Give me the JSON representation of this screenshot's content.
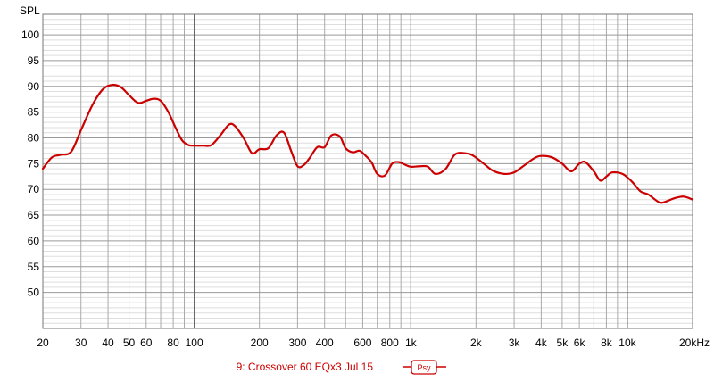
{
  "chart_data": {
    "type": "line",
    "ylabel": "SPL",
    "x_scale": "log",
    "xlim": [
      20,
      20000
    ],
    "ylim": [
      43,
      104
    ],
    "x_ticks": [
      {
        "value": 20,
        "label": "20"
      },
      {
        "value": 30,
        "label": "30"
      },
      {
        "value": 40,
        "label": "40"
      },
      {
        "value": 50,
        "label": "50"
      },
      {
        "value": 60,
        "label": "60"
      },
      {
        "value": 80,
        "label": "80"
      },
      {
        "value": 100,
        "label": "100"
      },
      {
        "value": 200,
        "label": "200"
      },
      {
        "value": 300,
        "label": "300"
      },
      {
        "value": 400,
        "label": "400"
      },
      {
        "value": 600,
        "label": "600"
      },
      {
        "value": 800,
        "label": "800"
      },
      {
        "value": 1000,
        "label": "1k"
      },
      {
        "value": 2000,
        "label": "2k"
      },
      {
        "value": 3000,
        "label": "3k"
      },
      {
        "value": 4000,
        "label": "4k"
      },
      {
        "value": 5000,
        "label": "5k"
      },
      {
        "value": 6000,
        "label": "6k"
      },
      {
        "value": 8000,
        "label": "8k"
      },
      {
        "value": 10000,
        "label": "10k"
      },
      {
        "value": 20000,
        "label": "20kHz"
      }
    ],
    "y_ticks": [
      50,
      55,
      60,
      65,
      70,
      75,
      80,
      85,
      90,
      95,
      100
    ],
    "grid": true,
    "legend_position": "bottom-center",
    "series": [
      {
        "name": "9: Crossover 60 EQx3 Jul 15",
        "color": "#cc0000",
        "x": [
          20,
          22,
          24,
          27,
          30,
          34,
          38,
          42,
          46,
          50,
          55,
          60,
          65,
          70,
          76,
          82,
          88,
          94,
          100,
          110,
          120,
          132,
          145,
          155,
          170,
          185,
          200,
          220,
          240,
          260,
          280,
          300,
          320,
          340,
          370,
          400,
          430,
          470,
          500,
          540,
          580,
          620,
          660,
          700,
          760,
          820,
          880,
          940,
          1000,
          1100,
          1200,
          1300,
          1450,
          1600,
          1800,
          1950,
          2200,
          2400,
          2700,
          3000,
          3300,
          3700,
          4000,
          4500,
          5000,
          5500,
          6000,
          6400,
          7000,
          7500,
          8000,
          8500,
          9500,
          10500,
          11500,
          12500,
          14000,
          15000,
          16500,
          18000,
          19000,
          20000
        ],
        "y": [
          74.0,
          76.2,
          76.7,
          77.3,
          81.5,
          86.5,
          89.5,
          90.3,
          89.8,
          88.3,
          86.8,
          87.2,
          87.6,
          87.2,
          85.0,
          82.0,
          79.5,
          78.6,
          78.5,
          78.5,
          78.6,
          80.5,
          82.6,
          82.2,
          79.8,
          77.0,
          77.8,
          78.0,
          80.5,
          81.0,
          77.5,
          74.5,
          74.7,
          76.0,
          78.2,
          78.2,
          80.5,
          80.3,
          78.0,
          77.2,
          77.5,
          76.5,
          75.2,
          73.0,
          72.7,
          75.0,
          75.3,
          74.8,
          74.4,
          74.5,
          74.4,
          73.0,
          74.0,
          76.8,
          77.0,
          76.5,
          74.8,
          73.6,
          73.0,
          73.3,
          74.5,
          76.0,
          76.5,
          76.2,
          75.0,
          73.5,
          75.0,
          75.3,
          73.5,
          71.7,
          72.5,
          73.3,
          73.0,
          71.5,
          69.6,
          69.0,
          67.5,
          67.6,
          68.3,
          68.6,
          68.4,
          68.0
        ]
      }
    ],
    "legend_badge": "Psy"
  }
}
